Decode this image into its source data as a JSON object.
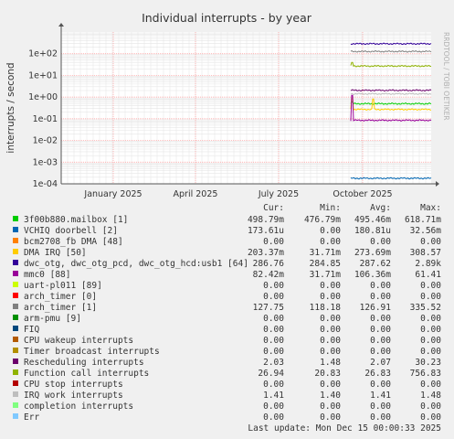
{
  "chart_data": {
    "type": "line",
    "title": "Individual interrupts - by year",
    "ylabel": "interrupts / second",
    "side_text": "RRDTOOL / TOBI OETIKER",
    "y_scale": "log",
    "ylim": [
      0.0001,
      1000
    ],
    "y_ticks": [
      {
        "value": 100,
        "label": "1e+02"
      },
      {
        "value": 10,
        "label": "1e+01"
      },
      {
        "value": 1,
        "label": "1e+00"
      },
      {
        "value": 0.1,
        "label": "1e-01"
      },
      {
        "value": 0.01,
        "label": "1e-02"
      },
      {
        "value": 0.001,
        "label": "1e-03"
      },
      {
        "value": 0.0001,
        "label": "1e-04"
      }
    ],
    "x_range": [
      "2024-11-05",
      "2025-12-15"
    ],
    "x_ticks": [
      {
        "date": "2025-01-01",
        "label": "January 2025"
      },
      {
        "date": "2025-04-01",
        "label": "April 2025"
      },
      {
        "date": "2025-07-01",
        "label": "July 2025"
      },
      {
        "date": "2025-10-01",
        "label": "October 2025"
      }
    ],
    "data_start": "2025-09-18",
    "grid": true,
    "columns": [
      "Cur:",
      "Min:",
      "Avg:",
      "Max:"
    ],
    "series": [
      {
        "name": "3f00b880.mailbox [1]",
        "color": "#00cc00",
        "cur": "498.79m",
        "min": "476.79m",
        "avg": "495.46m",
        "max": "618.71m",
        "level": 0.495,
        "spike": 0.6
      },
      {
        "name": "VCHIQ doorbell [2]",
        "color": "#0066b3",
        "cur": "173.61u",
        "min": "0.00",
        "avg": "180.81u",
        "max": "32.56m",
        "level": 0.00018,
        "spike": null
      },
      {
        "name": "bcm2708_fb DMA [48]",
        "color": "#ff8000",
        "cur": "0.00",
        "min": "0.00",
        "avg": "0.00",
        "max": "0.00",
        "level": 0,
        "spike": null
      },
      {
        "name": "DMA IRQ [50]",
        "color": "#ffcc00",
        "cur": "203.37m",
        "min": "31.71m",
        "avg": "273.69m",
        "max": "308.57",
        "level": 0.27,
        "spike": 1.0
      },
      {
        "name": "dwc_otg, dwc_otg_pcd, dwc_otg_hcd:usb1 [64]",
        "color": "#330099",
        "cur": "286.76",
        "min": "284.85",
        "avg": "287.62",
        "max": "2.89k",
        "level": 287,
        "spike": null
      },
      {
        "name": "mmc0 [88]",
        "color": "#990099",
        "cur": "82.42m",
        "min": "31.71m",
        "avg": "106.36m",
        "max": "61.41",
        "level": 0.085,
        "spike": 1.2
      },
      {
        "name": "uart-pl011 [89]",
        "color": "#ccff00",
        "cur": "0.00",
        "min": "0.00",
        "avg": "0.00",
        "max": "0.00",
        "level": 0,
        "spike": null
      },
      {
        "name": "arch_timer [0]",
        "color": "#ff0000",
        "cur": "0.00",
        "min": "0.00",
        "avg": "0.00",
        "max": "0.00",
        "level": 0,
        "spike": null
      },
      {
        "name": "arch_timer [1]",
        "color": "#808080",
        "cur": "127.75",
        "min": "118.18",
        "avg": "126.91",
        "max": "335.52",
        "level": 127,
        "spike": null
      },
      {
        "name": "arm-pmu [9]",
        "color": "#008f00",
        "cur": "0.00",
        "min": "0.00",
        "avg": "0.00",
        "max": "0.00",
        "level": 0,
        "spike": null
      },
      {
        "name": "FIQ",
        "color": "#00487d",
        "cur": "0.00",
        "min": "0.00",
        "avg": "0.00",
        "max": "0.00",
        "level": 0,
        "spike": null
      },
      {
        "name": "CPU wakeup interrupts",
        "color": "#b35a00",
        "cur": "0.00",
        "min": "0.00",
        "avg": "0.00",
        "max": "0.00",
        "level": 0,
        "spike": null
      },
      {
        "name": "Timer broadcast interrupts",
        "color": "#b38f00",
        "cur": "0.00",
        "min": "0.00",
        "avg": "0.00",
        "max": "0.00",
        "level": 0,
        "spike": null
      },
      {
        "name": "Rescheduling interrupts",
        "color": "#6b006b",
        "cur": "2.03",
        "min": "1.48",
        "avg": "2.07",
        "max": "30.23",
        "level": 2.05,
        "spike": null
      },
      {
        "name": "Function call interrupts",
        "color": "#8fb300",
        "cur": "26.94",
        "min": "20.83",
        "avg": "26.83",
        "max": "756.83",
        "level": 27,
        "spike": 40
      },
      {
        "name": "CPU stop interrupts",
        "color": "#b30000",
        "cur": "0.00",
        "min": "0.00",
        "avg": "0.00",
        "max": "0.00",
        "level": 0,
        "spike": null
      },
      {
        "name": "IRQ work interrupts",
        "color": "#bebebe",
        "cur": "1.41",
        "min": "1.40",
        "avg": "1.41",
        "max": "1.48",
        "level": 1.41,
        "spike": null
      },
      {
        "name": "completion interrupts",
        "color": "#80ff80",
        "cur": "0.00",
        "min": "0.00",
        "avg": "0.00",
        "max": "0.00",
        "level": 0,
        "spike": null
      },
      {
        "name": "Err",
        "color": "#80c9ff",
        "cur": "0.00",
        "min": "0.00",
        "avg": "0.00",
        "max": "0.00",
        "level": 0,
        "spike": null
      }
    ],
    "footer": "Last update: Mon Dec 15 00:00:33 2025"
  }
}
